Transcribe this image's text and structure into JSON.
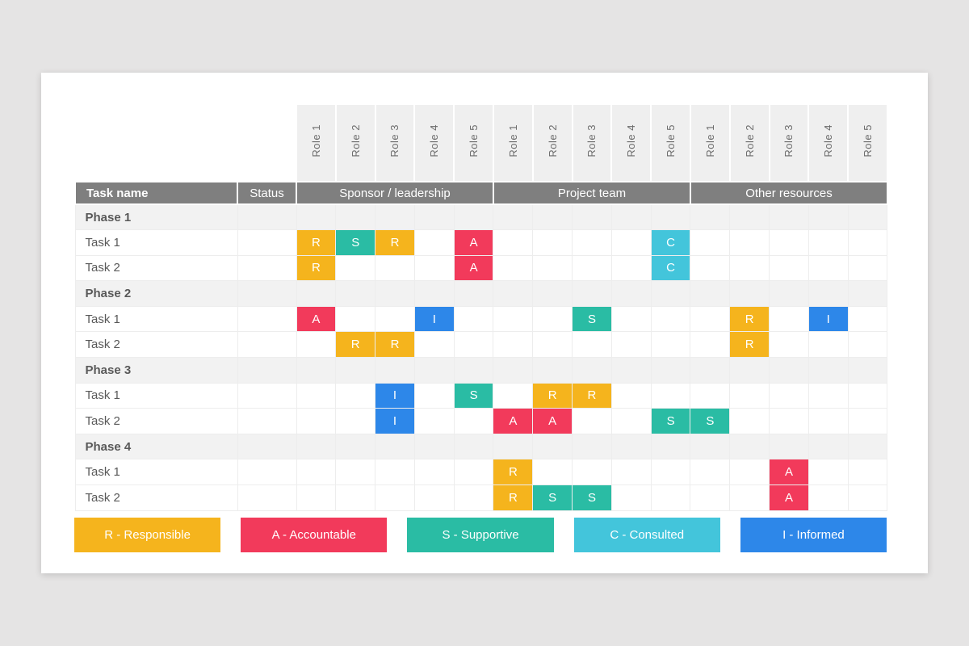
{
  "page": {
    "background": "#E5E4E4",
    "card_background": "#FFFFFF"
  },
  "table": {
    "task_name_header": "Task name",
    "status_header": "Status",
    "role_groups": [
      {
        "label": "Sponsor / leadership",
        "roles": [
          "Role 1",
          "Role 2",
          "Role 3",
          "Role 4",
          "Role 5"
        ]
      },
      {
        "label": "Project team",
        "roles": [
          "Role 1",
          "Role 2",
          "Role 3",
          "Role 4",
          "Role 5"
        ]
      },
      {
        "label": "Other resources",
        "roles": [
          "Role 1",
          "Role 2",
          "Role 3",
          "Role 4",
          "Role 5"
        ]
      }
    ],
    "rows": [
      {
        "type": "phase",
        "label": "Phase 1",
        "cells": [
          "",
          "",
          "",
          "",
          "",
          "",
          "",
          "",
          "",
          "",
          "",
          "",
          "",
          "",
          ""
        ]
      },
      {
        "type": "task",
        "label": "Task 1",
        "cells": [
          "R",
          "S",
          "R",
          "",
          "A",
          "",
          "",
          "",
          "",
          "C",
          "",
          "",
          "",
          "",
          ""
        ]
      },
      {
        "type": "task",
        "label": "Task 2",
        "cells": [
          "R",
          "",
          "",
          "",
          "A",
          "",
          "",
          "",
          "",
          "C",
          "",
          "",
          "",
          "",
          ""
        ]
      },
      {
        "type": "phase",
        "label": "Phase 2",
        "cells": [
          "",
          "",
          "",
          "",
          "",
          "",
          "",
          "",
          "",
          "",
          "",
          "",
          "",
          "",
          ""
        ]
      },
      {
        "type": "task",
        "label": "Task 1",
        "cells": [
          "A",
          "",
          "",
          "I",
          "",
          "",
          "",
          "S",
          "",
          "",
          "",
          "R",
          "",
          "I",
          ""
        ]
      },
      {
        "type": "task",
        "label": "Task 2",
        "cells": [
          "",
          "R",
          "R",
          "",
          "",
          "",
          "",
          "",
          "",
          "",
          "",
          "R",
          "",
          "",
          ""
        ]
      },
      {
        "type": "phase",
        "label": "Phase 3",
        "cells": [
          "",
          "",
          "",
          "",
          "",
          "",
          "",
          "",
          "",
          "",
          "",
          "",
          "",
          "",
          ""
        ]
      },
      {
        "type": "task",
        "label": "Task 1",
        "cells": [
          "",
          "",
          "I",
          "",
          "S",
          "",
          "R",
          "R",
          "",
          "",
          "",
          "",
          "",
          "",
          ""
        ]
      },
      {
        "type": "task",
        "label": "Task 2",
        "cells": [
          "",
          "",
          "I",
          "",
          "",
          "A",
          "A",
          "",
          "",
          "S",
          "S",
          "",
          "",
          "",
          ""
        ]
      },
      {
        "type": "phase",
        "label": "Phase 4",
        "cells": [
          "",
          "",
          "",
          "",
          "",
          "",
          "",
          "",
          "",
          "",
          "",
          "",
          "",
          "",
          ""
        ]
      },
      {
        "type": "task",
        "label": "Task 1",
        "cells": [
          "",
          "",
          "",
          "",
          "",
          "R",
          "",
          "",
          "",
          "",
          "",
          "",
          "A",
          "",
          ""
        ]
      },
      {
        "type": "task",
        "label": "Task 2",
        "cells": [
          "",
          "",
          "",
          "",
          "",
          "R",
          "S",
          "S",
          "",
          "",
          "",
          "",
          "A",
          "",
          ""
        ]
      }
    ]
  },
  "legend": [
    {
      "code": "R",
      "label": "R - Responsible"
    },
    {
      "code": "A",
      "label": "A - Accountable"
    },
    {
      "code": "S",
      "label": "S - Supportive"
    },
    {
      "code": "C",
      "label": "C - Consulted"
    },
    {
      "code": "I",
      "label": "I - Informed"
    }
  ],
  "colors": {
    "R": "#F5B41D",
    "A": "#F23A5B",
    "S": "#2ABCA4",
    "C": "#43C5DB",
    "I": "#2D87E9",
    "header_bg": "#7F7F7F",
    "header_text": "#FFFFFF",
    "phase_row_bg": "#F2F2F2",
    "role_header_bg": "#EFEFEF",
    "grid_line": "#EDEDED",
    "label_text": "#595959",
    "role_label_text": "#6B6B6B"
  }
}
